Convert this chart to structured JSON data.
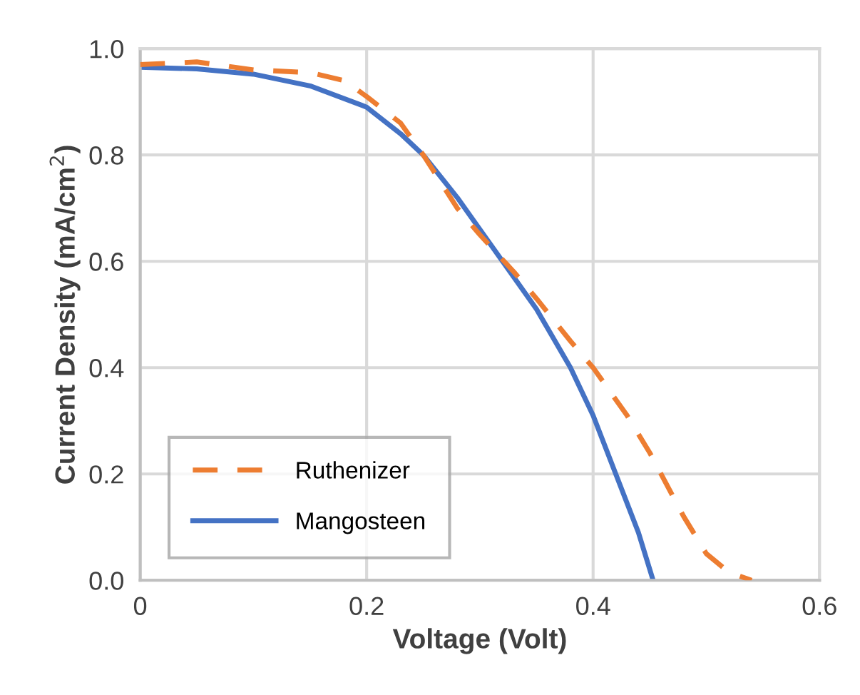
{
  "chart_data": {
    "type": "line",
    "xlabel": "Voltage (Volt)",
    "ylabel": "Current Density (mA/cm$^{2}$)",
    "xlim": [
      0,
      0.6
    ],
    "xticks": [
      {
        "value": 0,
        "label": "0"
      },
      0.2,
      0.4,
      0.6
    ],
    "ylim": [
      0,
      1.0
    ],
    "yticks": [
      {
        "value": 0,
        "label": "0.0"
      },
      0.2,
      0.4,
      0.6,
      0.8,
      {
        "value": 1,
        "label": "1.0"
      }
    ],
    "grid": true,
    "legend": "bottom left",
    "series": [
      {
        "name": "Ruthenizer",
        "color": "#ed7d31",
        "line_style": "dashed",
        "x": [
          0,
          0.05,
          0.1,
          0.15,
          0.18,
          0.2,
          0.23,
          0.25,
          0.28,
          0.3,
          0.33,
          0.35,
          0.38,
          0.4,
          0.43,
          0.45,
          0.47,
          0.48,
          0.5,
          0.52,
          0.54
        ],
        "values": [
          0.97,
          0.975,
          0.96,
          0.955,
          0.94,
          0.91,
          0.86,
          0.8,
          0.7,
          0.65,
          0.58,
          0.53,
          0.45,
          0.4,
          0.31,
          0.24,
          0.16,
          0.12,
          0.05,
          0.015,
          0.0
        ]
      },
      {
        "name": "Mangosteen",
        "color": "#4472c4",
        "line_style": "solid",
        "x": [
          0,
          0.05,
          0.1,
          0.15,
          0.2,
          0.23,
          0.25,
          0.28,
          0.3,
          0.33,
          0.35,
          0.38,
          0.4,
          0.42,
          0.44,
          0.453
        ],
        "values": [
          0.965,
          0.962,
          0.952,
          0.93,
          0.89,
          0.84,
          0.8,
          0.72,
          0.66,
          0.57,
          0.51,
          0.4,
          0.31,
          0.2,
          0.09,
          0.0
        ]
      }
    ]
  }
}
